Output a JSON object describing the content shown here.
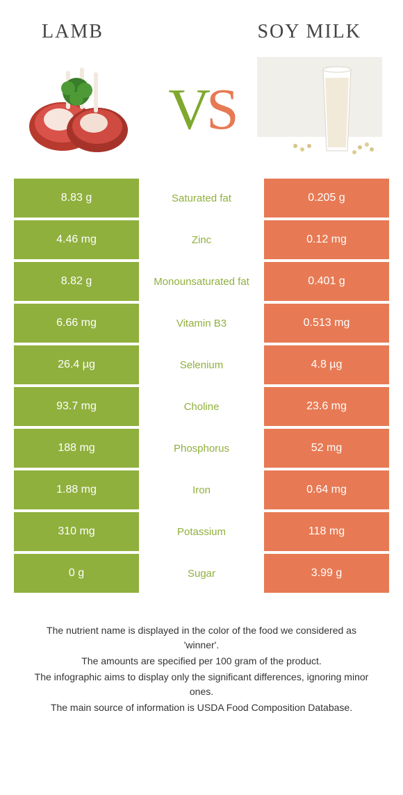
{
  "titles": {
    "left": "Lamb",
    "right": "Soy milk"
  },
  "vs": {
    "v": "V",
    "s": "S"
  },
  "colors": {
    "leftBg": "#8fb03d",
    "rightBg": "#e77a54",
    "leftText": "#8fb03d",
    "rightText": "#e77a54"
  },
  "rows": [
    {
      "left": "8.83 g",
      "label": "Saturated fat",
      "right": "0.205 g",
      "winner": "left"
    },
    {
      "left": "4.46 mg",
      "label": "Zinc",
      "right": "0.12 mg",
      "winner": "left"
    },
    {
      "left": "8.82 g",
      "label": "Monounsaturated fat",
      "right": "0.401 g",
      "winner": "left"
    },
    {
      "left": "6.66 mg",
      "label": "Vitamin B3",
      "right": "0.513 mg",
      "winner": "left"
    },
    {
      "left": "26.4 µg",
      "label": "Selenium",
      "right": "4.8 µg",
      "winner": "left"
    },
    {
      "left": "93.7 mg",
      "label": "Choline",
      "right": "23.6 mg",
      "winner": "left"
    },
    {
      "left": "188 mg",
      "label": "Phosphorus",
      "right": "52 mg",
      "winner": "left"
    },
    {
      "left": "1.88 mg",
      "label": "Iron",
      "right": "0.64 mg",
      "winner": "left"
    },
    {
      "left": "310 mg",
      "label": "Potassium",
      "right": "118 mg",
      "winner": "left"
    },
    {
      "left": "0 g",
      "label": "Sugar",
      "right": "3.99 g",
      "winner": "left"
    }
  ],
  "footer": [
    "The nutrient name is displayed in the color of the food we considered as 'winner'.",
    "The amounts are specified per 100 gram of the product.",
    "The infographic aims to display only the significant differences, ignoring minor ones.",
    "The main source of information is USDA Food Composition Database."
  ]
}
